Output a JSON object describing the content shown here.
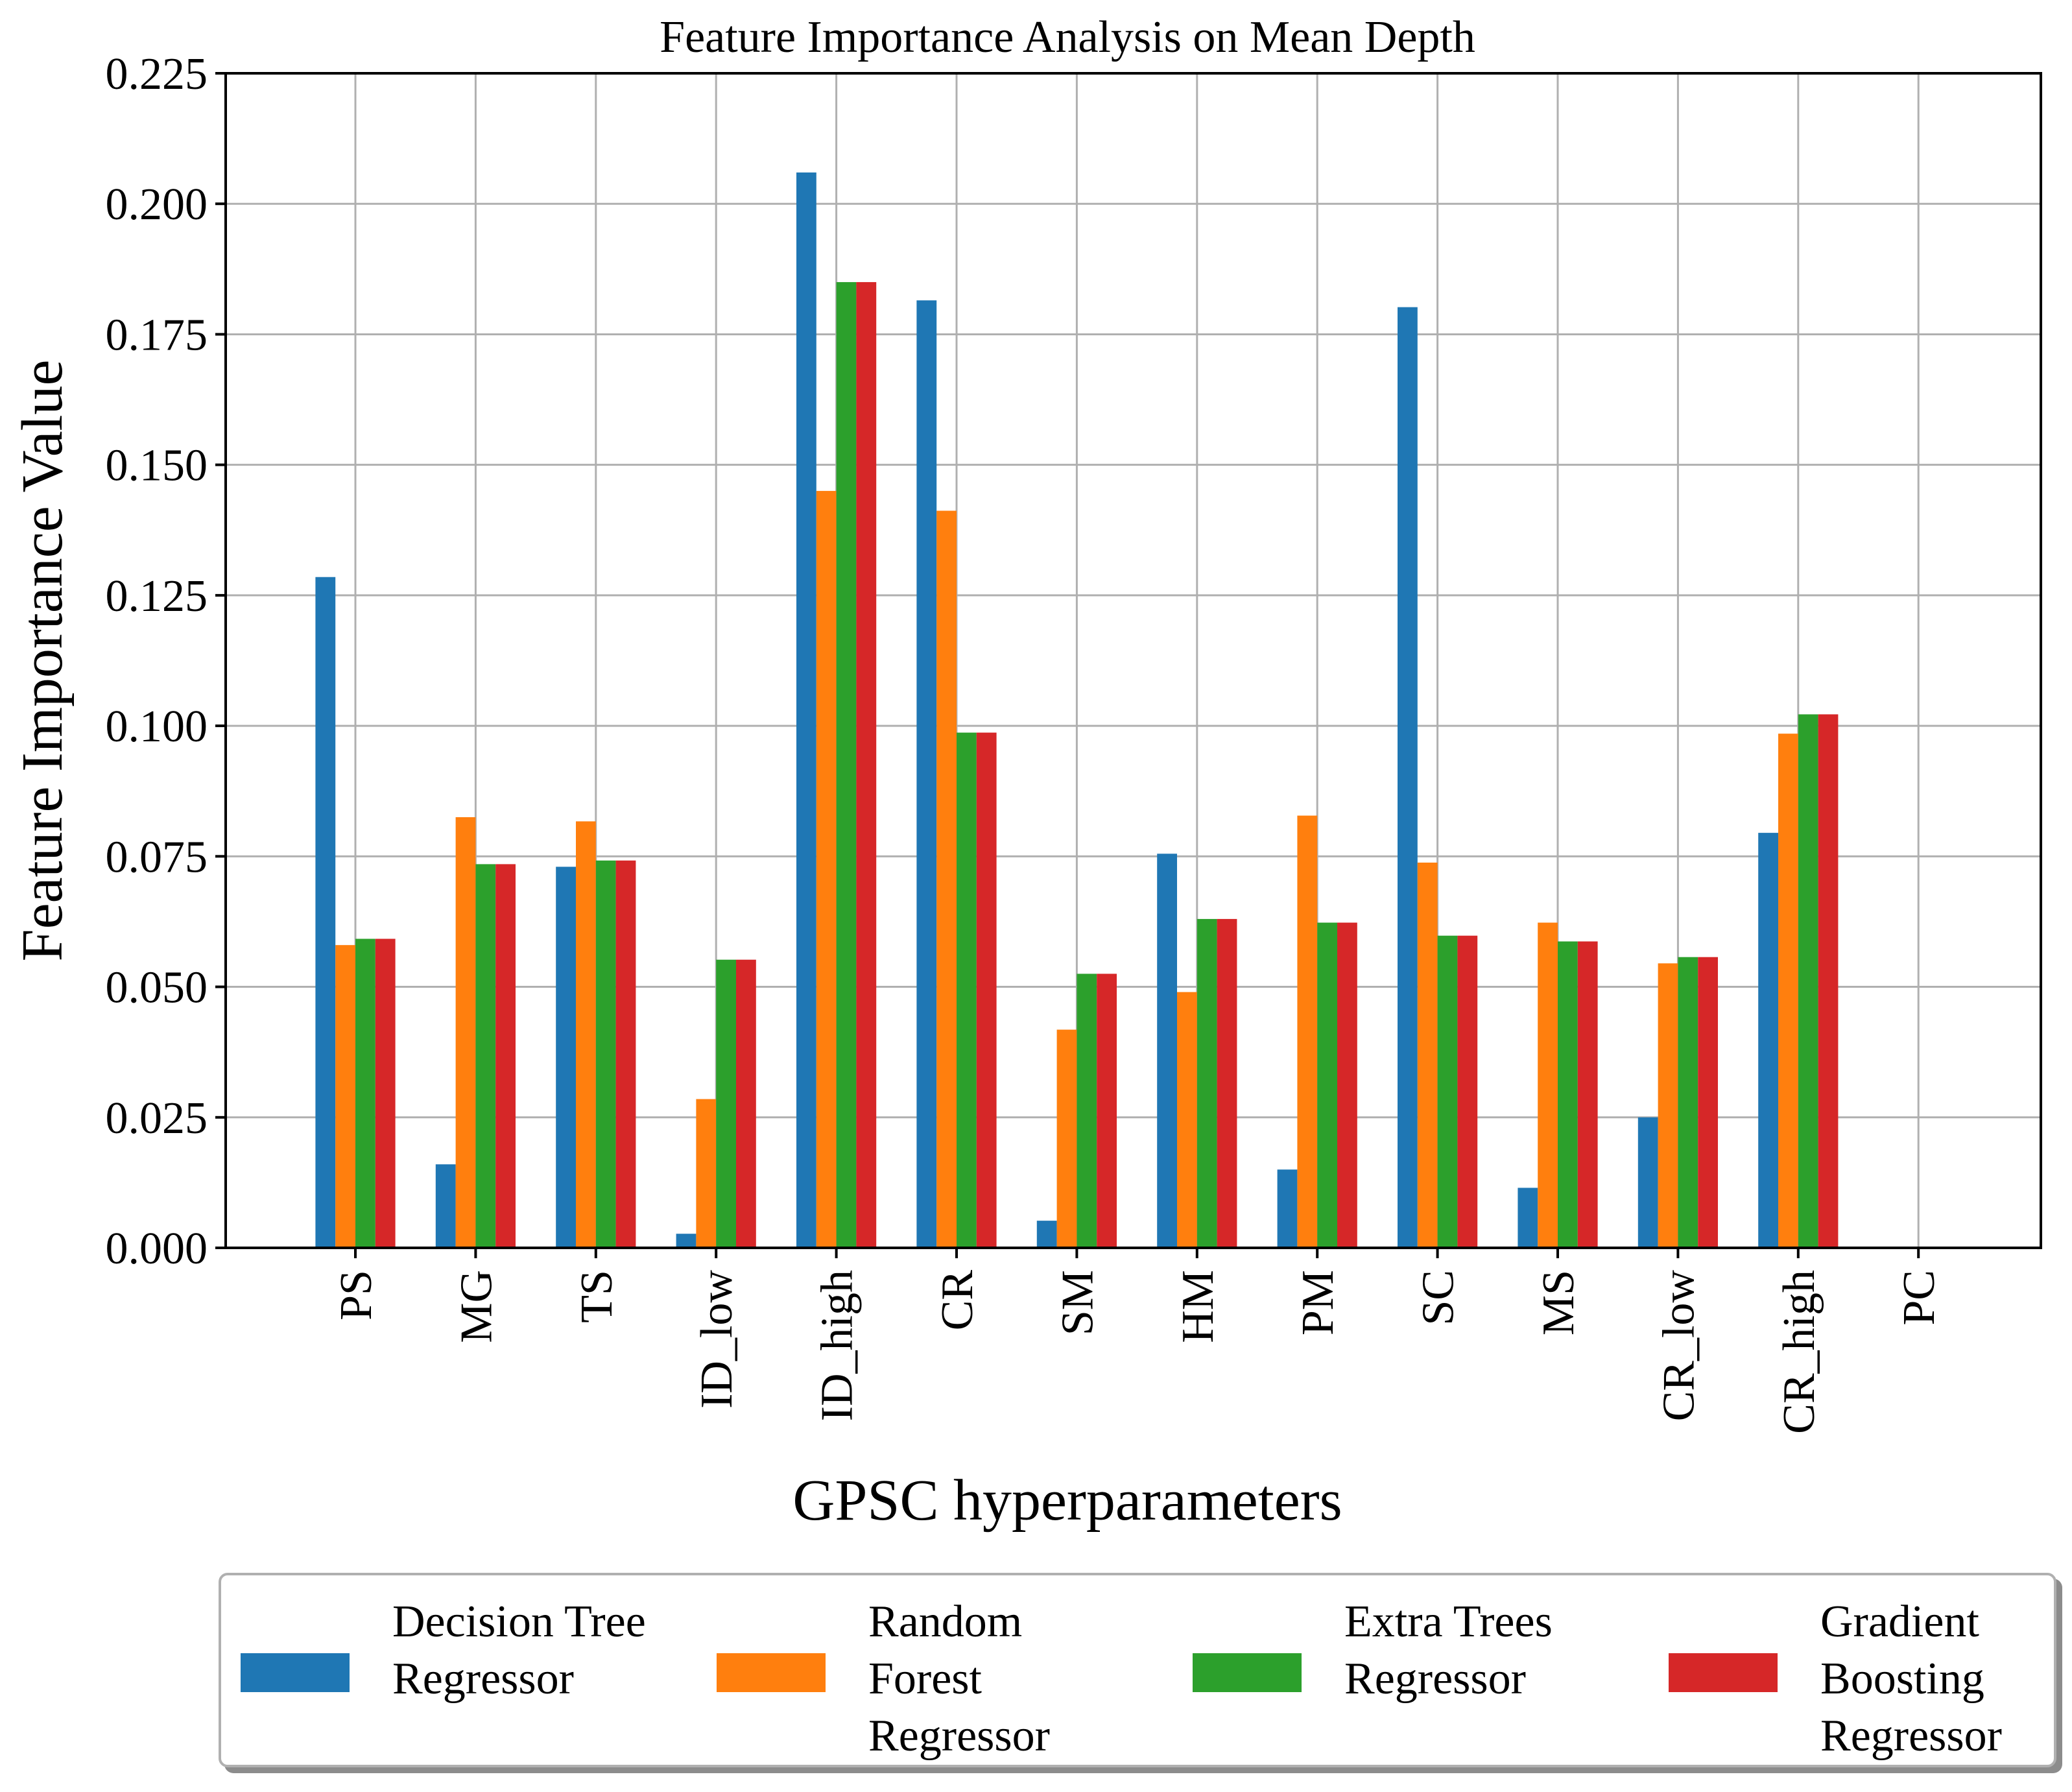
{
  "chart_data": {
    "type": "bar",
    "title": "Feature Importance Analysis on Mean Depth",
    "xlabel": "GPSC hyperparameters",
    "ylabel": "Feature Importance Value",
    "ylim": [
      0,
      0.225
    ],
    "yticks": [
      "0.000",
      "0.025",
      "0.050",
      "0.075",
      "0.100",
      "0.125",
      "0.150",
      "0.175",
      "0.200",
      "0.225"
    ],
    "grid": true,
    "legend_position": "bottom-center",
    "categories": [
      "PS",
      "MG",
      "TS",
      "ID_low",
      "ID_high",
      "CR",
      "SM",
      "HM",
      "PM",
      "SC",
      "MS",
      "CR_low",
      "CR_high",
      "PC"
    ],
    "series": [
      {
        "name": "Decision Tree Regressor",
        "color": "#1f77b4",
        "values": [
          0.1285,
          0.016,
          0.073,
          0.0027,
          0.206,
          0.1815,
          0.0052,
          0.0755,
          0.015,
          0.1802,
          0.0115,
          0.025,
          0.0795,
          0
        ]
      },
      {
        "name": "Random Forest Regressor",
        "color": "#ff7f0e",
        "values": [
          0.058,
          0.0825,
          0.0817,
          0.0285,
          0.145,
          0.1412,
          0.0418,
          0.049,
          0.0828,
          0.0738,
          0.0623,
          0.0545,
          0.0985,
          0
        ]
      },
      {
        "name": "Extra Trees Regressor",
        "color": "#2ca02c",
        "values": [
          0.0592,
          0.0735,
          0.0742,
          0.0552,
          0.185,
          0.0987,
          0.0525,
          0.063,
          0.0623,
          0.0598,
          0.0587,
          0.0557,
          0.1022,
          0
        ]
      },
      {
        "name": "Gradient Boosting Regressor",
        "color": "#d62728",
        "values": [
          0.0592,
          0.0735,
          0.0742,
          0.0552,
          0.185,
          0.0987,
          0.0525,
          0.063,
          0.0623,
          0.0598,
          0.0587,
          0.0557,
          0.1022,
          0
        ]
      }
    ]
  }
}
